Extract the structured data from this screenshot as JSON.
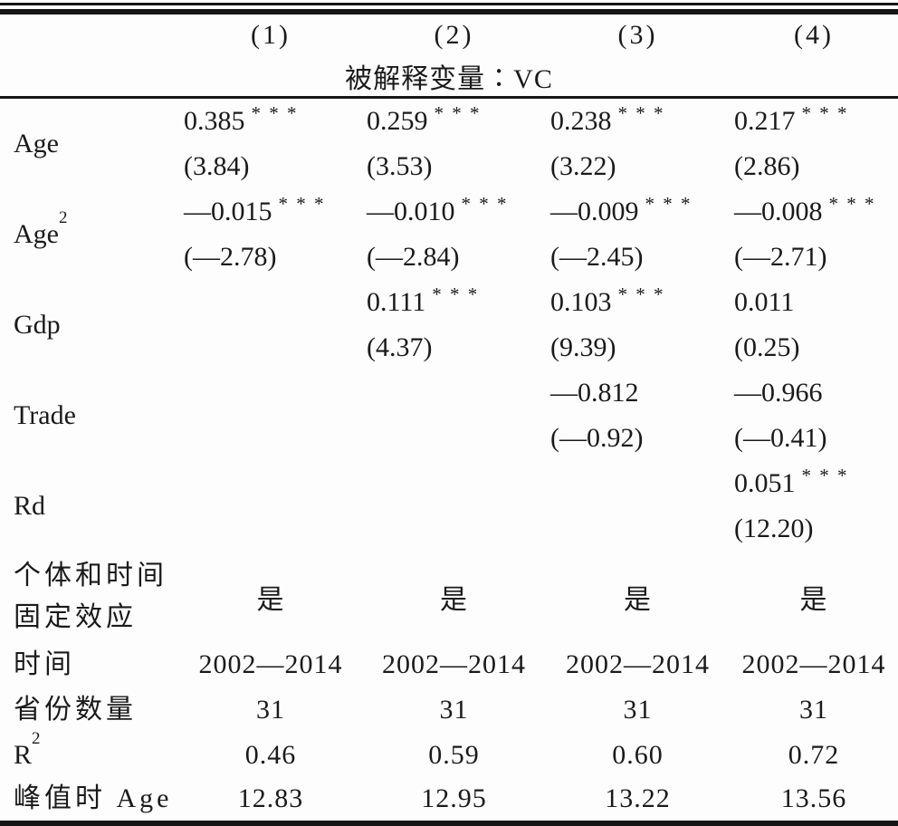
{
  "page": {
    "background_color": "#fdfdfd",
    "text_color": "#1a1a1a",
    "rule_color": "#161616"
  },
  "header": {
    "cols": [
      "(1)",
      "(2)",
      "(3)",
      "(4)"
    ],
    "dep_var": "被解释变量∶VC"
  },
  "coef_rows": [
    {
      "label": "Age",
      "sup": "",
      "cells": [
        {
          "coef": "0.385",
          "stars": "* * *",
          "t": "(3.84)"
        },
        {
          "coef": "0.259",
          "stars": "* * *",
          "t": "(3.53)"
        },
        {
          "coef": "0.238",
          "stars": "* * *",
          "t": "(3.22)"
        },
        {
          "coef": "0.217",
          "stars": "* * *",
          "t": "(2.86)"
        }
      ]
    },
    {
      "label": "Age",
      "sup": "2",
      "cells": [
        {
          "coef": "—0.015",
          "stars": "* * *",
          "t": "(—2.78)"
        },
        {
          "coef": "—0.010",
          "stars": "* * *",
          "t": "(—2.84)"
        },
        {
          "coef": "—0.009",
          "stars": "* * *",
          "t": "(—2.45)"
        },
        {
          "coef": "—0.008",
          "stars": "* * *",
          "t": "(—2.71)"
        }
      ]
    },
    {
      "label": "Gdp",
      "sup": "",
      "cells": [
        {
          "coef": "",
          "stars": "",
          "t": ""
        },
        {
          "coef": "0.111",
          "stars": "* * *",
          "t": "(4.37)"
        },
        {
          "coef": "0.103",
          "stars": "* * *",
          "t": "(9.39)"
        },
        {
          "coef": "0.011",
          "stars": "",
          "t": "(0.25)"
        }
      ]
    },
    {
      "label": "Trade",
      "sup": "",
      "cells": [
        {
          "coef": "",
          "stars": "",
          "t": ""
        },
        {
          "coef": "",
          "stars": "",
          "t": ""
        },
        {
          "coef": "—0.812",
          "stars": "",
          "t": "(—0.92)"
        },
        {
          "coef": "—0.966",
          "stars": "",
          "t": "(—0.41)"
        }
      ]
    },
    {
      "label": "Rd",
      "sup": "",
      "cells": [
        {
          "coef": "",
          "stars": "",
          "t": ""
        },
        {
          "coef": "",
          "stars": "",
          "t": ""
        },
        {
          "coef": "",
          "stars": "",
          "t": ""
        },
        {
          "coef": "0.051",
          "stars": "* * *",
          "t": "(12.20)"
        }
      ]
    }
  ],
  "summary_rows": [
    {
      "label": "个体和时间\n固定效应",
      "sup": "",
      "values": [
        "是",
        "是",
        "是",
        "是"
      ]
    },
    {
      "label": "时间",
      "sup": "",
      "values": [
        "2002—2014",
        "2002—2014",
        "2002—2014",
        "2002—2014"
      ]
    },
    {
      "label": "省份数量",
      "sup": "",
      "values": [
        "31",
        "31",
        "31",
        "31"
      ]
    },
    {
      "label": "R",
      "sup": "2",
      "values": [
        "0.46",
        "0.59",
        "0.60",
        "0.72"
      ]
    },
    {
      "label": "峰值时 Age",
      "sup": "",
      "values": [
        "12.83",
        "12.95",
        "13.22",
        "13.56"
      ]
    }
  ]
}
